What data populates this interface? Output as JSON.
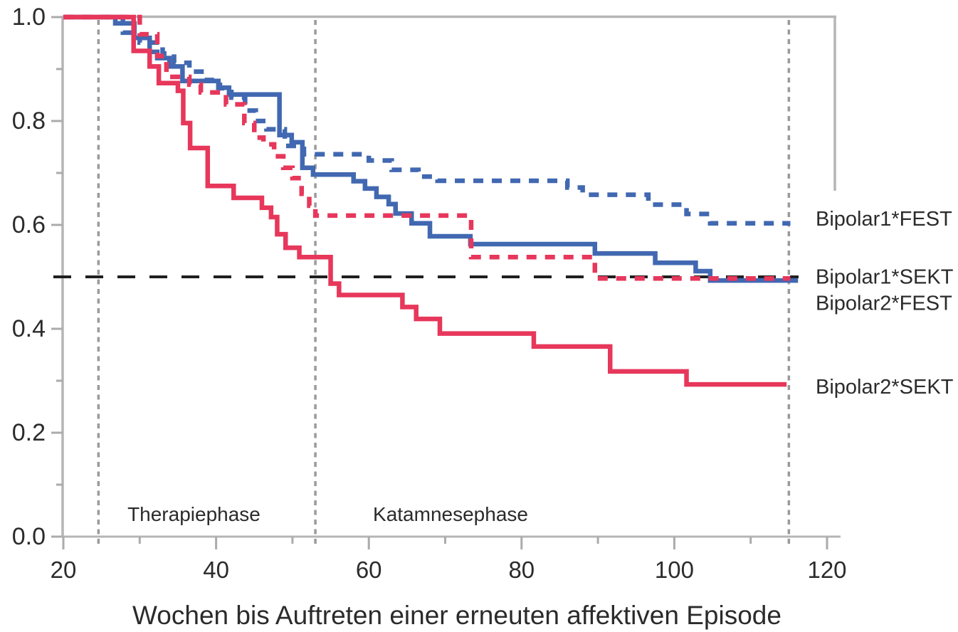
{
  "chart_data": {
    "type": "line",
    "subtype": "kaplan-meier-step",
    "title": "",
    "xlabel": "Wochen bis Auftreten einer erneuten affektiven Episode",
    "ylabel": "",
    "xlim": [
      20,
      120
    ],
    "ylim": [
      0.0,
      1.0
    ],
    "x_ticks": [
      20,
      40,
      60,
      80,
      100,
      120
    ],
    "x_tick_labels": [
      "20",
      "40",
      "60",
      "80",
      "100",
      "120"
    ],
    "x_minor_ticks": [
      30,
      50,
      70,
      90,
      110
    ],
    "y_ticks": [
      0.0,
      0.2,
      0.4,
      0.6,
      0.8,
      1.0
    ],
    "y_tick_labels": [
      "0.0",
      "0.2",
      "0.4",
      "0.6",
      "0.8",
      "1.0"
    ],
    "y_minor_ticks": [
      0.1,
      0.3,
      0.5,
      0.7,
      0.9
    ],
    "grid": false,
    "legend_position": "right-of-plot",
    "colors": {
      "blue": "#4168b1",
      "red": "#e7375b",
      "reference_black": "#1f1f1f",
      "phase_line_gray": "#9a9a9a",
      "axis_gray": "#b5b5b5",
      "text": "#2b2b2b"
    },
    "series": [
      {
        "name": "Bipolar1*FEST",
        "color_key": "blue",
        "line_style": "dashed",
        "end_week": 115.2,
        "points": [
          [
            20,
            1.0
          ],
          [
            27.8,
            0.97
          ],
          [
            30,
            0.951
          ],
          [
            33,
            0.93
          ],
          [
            34.5,
            0.912
          ],
          [
            36.5,
            0.895
          ],
          [
            38.5,
            0.879
          ],
          [
            40.5,
            0.863
          ],
          [
            42,
            0.845
          ],
          [
            43.8,
            0.82
          ],
          [
            45.2,
            0.8
          ],
          [
            46.6,
            0.784
          ],
          [
            49,
            0.752
          ],
          [
            51.5,
            0.736
          ],
          [
            60,
            0.724
          ],
          [
            63,
            0.706
          ],
          [
            66.5,
            0.693
          ],
          [
            69,
            0.685
          ],
          [
            86,
            0.672
          ],
          [
            88,
            0.658
          ],
          [
            96.6,
            0.639
          ],
          [
            101.6,
            0.621
          ],
          [
            104.7,
            0.603
          ]
        ]
      },
      {
        "name": "Bipolar1*SEKT",
        "color_key": "blue",
        "line_style": "solid",
        "end_week": 116.2,
        "points": [
          [
            20,
            1.0
          ],
          [
            26.8,
            0.988
          ],
          [
            29.3,
            0.96
          ],
          [
            31.3,
            0.933
          ],
          [
            32.3,
            0.921
          ],
          [
            33.9,
            0.905
          ],
          [
            35.6,
            0.877
          ],
          [
            40.3,
            0.864
          ],
          [
            41.7,
            0.851
          ],
          [
            48.3,
            0.773
          ],
          [
            49.9,
            0.759
          ],
          [
            51.3,
            0.71
          ],
          [
            52.7,
            0.697
          ],
          [
            58,
            0.684
          ],
          [
            59.5,
            0.67
          ],
          [
            61,
            0.654
          ],
          [
            62.6,
            0.64
          ],
          [
            63.5,
            0.622
          ],
          [
            65.6,
            0.603
          ],
          [
            68,
            0.578
          ],
          [
            73.3,
            0.563
          ],
          [
            89.6,
            0.545
          ],
          [
            97.5,
            0.527
          ],
          [
            102.8,
            0.511
          ],
          [
            104.7,
            0.493
          ]
        ]
      },
      {
        "name": "Bipolar2*FEST",
        "color_key": "red",
        "line_style": "dashed",
        "end_week": 115.2,
        "points": [
          [
            20,
            1.0
          ],
          [
            30,
            0.967
          ],
          [
            32.3,
            0.925
          ],
          [
            33.5,
            0.885
          ],
          [
            36.5,
            0.87
          ],
          [
            38,
            0.855
          ],
          [
            41.3,
            0.832
          ],
          [
            43.7,
            0.796
          ],
          [
            45,
            0.768
          ],
          [
            46.2,
            0.755
          ],
          [
            47.6,
            0.732
          ],
          [
            48.8,
            0.71
          ],
          [
            50,
            0.69
          ],
          [
            51.2,
            0.66
          ],
          [
            52.2,
            0.637
          ],
          [
            53,
            0.618
          ],
          [
            73.4,
            0.538
          ],
          [
            89.6,
            0.497
          ]
        ]
      },
      {
        "name": "Bipolar2*SEKT",
        "color_key": "red",
        "line_style": "solid",
        "end_week": 114.7,
        "points": [
          [
            20,
            1.0
          ],
          [
            29.2,
            0.935
          ],
          [
            31.3,
            0.905
          ],
          [
            32.5,
            0.873
          ],
          [
            35,
            0.858
          ],
          [
            35.7,
            0.796
          ],
          [
            36.6,
            0.748
          ],
          [
            38.9,
            0.675
          ],
          [
            42.3,
            0.652
          ],
          [
            46,
            0.633
          ],
          [
            47.2,
            0.615
          ],
          [
            48,
            0.582
          ],
          [
            49.1,
            0.556
          ],
          [
            50.9,
            0.538
          ],
          [
            55,
            0.487
          ],
          [
            56.1,
            0.465
          ],
          [
            64.4,
            0.442
          ],
          [
            66.2,
            0.419
          ],
          [
            69.3,
            0.391
          ],
          [
            81.6,
            0.366
          ],
          [
            91.6,
            0.318
          ],
          [
            101.6,
            0.293
          ]
        ]
      }
    ],
    "reference_lines": {
      "horizontal": [
        {
          "y": 0.5,
          "style": "dashed",
          "color_key": "reference_black"
        }
      ],
      "vertical": [
        {
          "x": 24.6,
          "style": "dotted",
          "color_key": "phase_line_gray"
        },
        {
          "x": 53,
          "style": "dotted",
          "color_key": "phase_line_gray"
        },
        {
          "x": 115,
          "style": "dotted",
          "color_key": "phase_line_gray"
        }
      ]
    },
    "annotations": [
      {
        "text": "Therapiephase",
        "x": 37.1,
        "y": 0.044
      },
      {
        "text": "Katamnesephase",
        "x": 70.7,
        "y": 0.044
      }
    ],
    "legend": [
      {
        "label": "Bipolar1*FEST",
        "y": 0.612
      },
      {
        "label": "Bipolar1*SEKT",
        "y": 0.501
      },
      {
        "label": "Bipolar2*FEST",
        "y": 0.45
      },
      {
        "label": "Bipolar2*SEKT",
        "y": 0.289
      }
    ]
  }
}
